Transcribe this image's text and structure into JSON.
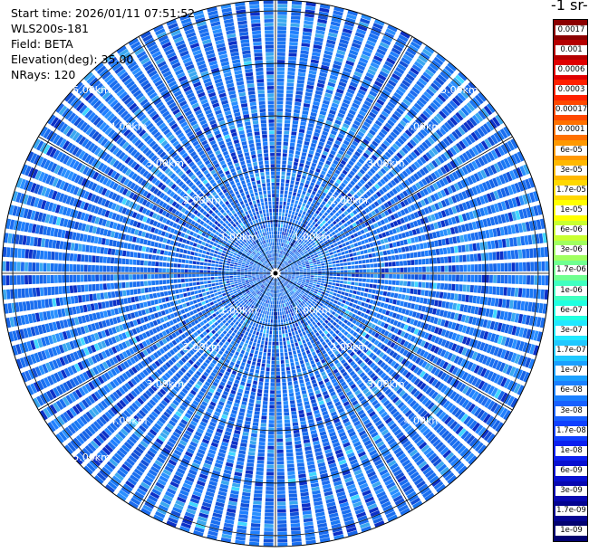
{
  "header": {
    "start_time": "Start time: 2026/01/11 07:51:52",
    "instrument": "WLS200s-181",
    "field": "Field: BETA",
    "elevation": "Elevation(deg): 35.00",
    "nrays": "NRays: 120"
  },
  "colorbar": {
    "unit_title": "-1 sr-",
    "levels": [
      "0.0017",
      "0.001",
      "0.0006",
      "0.0003",
      "0.00017",
      "0.0001",
      "6e-05",
      "3e-05",
      "1.7e-05",
      "1e-05",
      "6e-06",
      "3e-06",
      "1.7e-06",
      "1e-06",
      "6e-07",
      "3e-07",
      "1.7e-07",
      "1e-07",
      "6e-08",
      "3e-08",
      "1.7e-08",
      "1e-08",
      "6e-09",
      "3e-09",
      "1.7e-09",
      "1e-09"
    ],
    "colors": [
      "#8b0000",
      "#b50000",
      "#e00000",
      "#ff2000",
      "#ff4800",
      "#ff7000",
      "#ff9800",
      "#ffb800",
      "#ffd800",
      "#ffff00",
      "#c8ff30",
      "#a0ff60",
      "#70ff90",
      "#40ffc0",
      "#20ffe0",
      "#20e8ff",
      "#20c8ff",
      "#1aa0ff",
      "#1a80ff",
      "#1860ff",
      "#1040ff",
      "#0c20f0",
      "#0810d0",
      "#0808b0",
      "#040490",
      "#020270"
    ]
  },
  "range_labels": {
    "upper_left": [
      "1.00km",
      "2.00km",
      "3.00km",
      "4.00km",
      "5.00km"
    ],
    "upper_right": [
      "1.00km",
      "2.00km",
      "3.00km",
      "4.00km",
      "5.00km"
    ],
    "lower_left": [
      "1.00km",
      "2.00km",
      "3.00km",
      "4.00km",
      "5.00km"
    ],
    "lower_right": [
      "1.00km",
      "2.00km",
      "3.00km",
      "4.00km"
    ]
  },
  "display": {
    "nrays": 120,
    "max_range_km": 5.0,
    "ring_step_km": 1.0,
    "dominant_color": "#1a6ff0"
  }
}
